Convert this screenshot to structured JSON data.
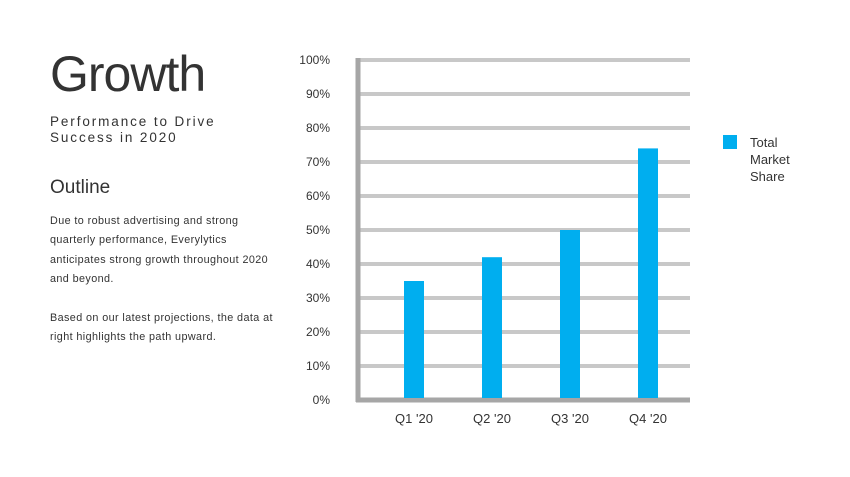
{
  "slide": {
    "title": "Growth",
    "subtitle": "Performance to Drive Success in 2020",
    "outline_heading": "Outline",
    "paragraphs": [
      "Due to robust advertising and strong quarterly performance, Everylytics anticipates strong growth throughout 2020 and beyond.",
      "Based on our latest projections, the data at right highlights the path upward."
    ]
  },
  "colors": {
    "bar": "#00AEEF",
    "grid": "#C8C8C8",
    "axis": "#A6A6A6",
    "text": "#333333"
  },
  "chart_data": {
    "type": "bar",
    "title": "",
    "xlabel": "",
    "ylabel": "",
    "categories": [
      "Q1 '20",
      "Q2 '20",
      "Q3 '20",
      "Q4 '20"
    ],
    "series": [
      {
        "name": "Total Market Share",
        "values": [
          0.35,
          0.42,
          0.5,
          0.74
        ]
      }
    ],
    "ylim": [
      0,
      1
    ],
    "yticks": [
      0,
      0.1,
      0.2,
      0.3,
      0.4,
      0.5,
      0.6,
      0.7,
      0.8,
      0.9,
      1.0
    ],
    "ytick_labels": [
      "0%",
      "10%",
      "20%",
      "30%",
      "40%",
      "50%",
      "60%",
      "70%",
      "80%",
      "90%",
      "100%"
    ],
    "grid": true,
    "legend": {
      "position": "right",
      "entries": [
        "Total Market Share"
      ]
    }
  }
}
